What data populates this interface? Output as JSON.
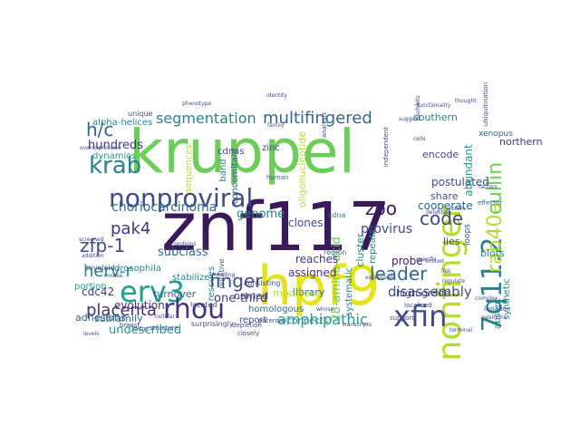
{
  "cloud": {
    "palette": {
      "dark_purple": "#3b1a5c",
      "purple": "#45337d",
      "indigo": "#3e4a89",
      "blue": "#31678e",
      "teal": "#26838e",
      "green": "#1f9e89",
      "lime": "#6cce59",
      "light_green": "#b4de2c",
      "yellow": "#e4e419",
      "bright_green": "#86d549"
    },
    "words": [
      {
        "id": "znf117",
        "text": "znf117",
        "color": "dark_purple",
        "rotate": false
      },
      {
        "id": "kruppel",
        "text": "kruppel",
        "color": "lime",
        "rotate": false
      },
      {
        "id": "hpf9",
        "text": "hpf9",
        "color": "yellow",
        "rotate": false
      },
      {
        "id": "nonproviral",
        "text": "nonproviral",
        "color": "indigo",
        "rotate": false
      },
      {
        "id": "nonfinger",
        "text": "nonfinger",
        "color": "light_green",
        "rotate": true
      },
      {
        "id": "7q11-2",
        "text": "7q11.2",
        "color": "teal",
        "rotate": true
      },
      {
        "id": "erv3",
        "text": "erv3",
        "color": "green",
        "rotate": false
      },
      {
        "id": "rhou",
        "text": "rhou",
        "color": "purple",
        "rotate": false
      },
      {
        "id": "xfin",
        "text": "xfin",
        "color": "indigo",
        "rotate": false
      },
      {
        "id": "krab",
        "text": "krab",
        "color": "teal",
        "rotate": false
      },
      {
        "id": "segmentation",
        "text": "segmentation",
        "color": "teal",
        "rotate": false
      },
      {
        "id": "multifingered",
        "text": "multifingered",
        "color": "blue",
        "rotate": false
      },
      {
        "id": "rab40a",
        "text": "rab40a",
        "color": "light_green",
        "rotate": true
      },
      {
        "id": "cullin",
        "text": "cullin",
        "color": "lime",
        "rotate": true
      },
      {
        "id": "h-c",
        "text": "h/c",
        "color": "blue",
        "rotate": false
      },
      {
        "id": "zoo",
        "text": "zoo",
        "color": "dark_purple",
        "rotate": false
      },
      {
        "id": "code",
        "text": "code",
        "color": "indigo",
        "rotate": false
      },
      {
        "id": "leader",
        "text": "leader",
        "color": "blue",
        "rotate": false
      },
      {
        "id": "finger",
        "text": "finger",
        "color": "indigo",
        "rotate": false
      },
      {
        "id": "placenta",
        "text": "placenta",
        "color": "purple",
        "rotate": false
      },
      {
        "id": "zfp-1",
        "text": "zfp-1",
        "color": "indigo",
        "rotate": false
      },
      {
        "id": "pak4",
        "text": "pak4",
        "color": "purple",
        "rotate": false
      },
      {
        "id": "herv-r",
        "text": "herv-r",
        "color": "teal",
        "rotate": false
      },
      {
        "id": "amphipathic",
        "text": "amphipathic",
        "color": "green",
        "rotate": false
      },
      {
        "id": "choriocarcinoma",
        "text": "choriocarcinoma",
        "color": "blue",
        "rotate": false
      },
      {
        "id": "disassembly",
        "text": "disassembly",
        "color": "indigo",
        "rotate": false
      },
      {
        "id": "provirus",
        "text": "provirus",
        "color": "indigo",
        "rotate": false
      },
      {
        "id": "hundreds",
        "text": "hundreds",
        "color": "purple",
        "rotate": false
      },
      {
        "id": "subclass",
        "text": "subclass",
        "color": "blue",
        "rotate": false
      },
      {
        "id": "one-third",
        "text": "one-third",
        "color": "purple",
        "rotate": false
      },
      {
        "id": "undescribed",
        "text": "undescribed",
        "color": "green",
        "rotate": false
      },
      {
        "id": "cdc42",
        "text": "cdc42",
        "color": "purple",
        "rotate": false
      },
      {
        "id": "evolution",
        "text": "evolution",
        "color": "purple",
        "rotate": false
      },
      {
        "id": "28-amino-acid",
        "text": "28-amino-acid",
        "color": "lime",
        "rotate": true
      },
      {
        "id": "cooperate",
        "text": "cooperate",
        "color": "blue",
        "rotate": false
      },
      {
        "id": "postulated",
        "text": "postulated",
        "color": "indigo",
        "rotate": false
      },
      {
        "id": "abundant",
        "text": "abundant",
        "color": "green",
        "rotate": true
      },
      {
        "id": "encode",
        "text": "encode",
        "color": "indigo",
        "rotate": false
      },
      {
        "id": "share",
        "text": "share",
        "color": "indigo",
        "rotate": false
      },
      {
        "id": "southern",
        "text": "southern",
        "color": "teal",
        "rotate": false
      },
      {
        "id": "northern",
        "text": "northern",
        "color": "purple",
        "rotate": false
      },
      {
        "id": "xenopus",
        "text": "xenopus",
        "color": "blue",
        "rotate": false
      },
      {
        "id": "probe",
        "text": "probe",
        "color": "dark_purple",
        "rotate": false
      },
      {
        "id": "high-grade",
        "text": "high-grade",
        "color": "indigo",
        "rotate": false
      },
      {
        "id": "lies",
        "text": "lies",
        "color": "indigo",
        "rotate": false
      },
      {
        "id": "blots",
        "text": "blots",
        "color": "teal",
        "rotate": false
      },
      {
        "id": "genome",
        "text": "genome",
        "color": "teal",
        "rotate": false
      },
      {
        "id": "clones",
        "text": "clones",
        "color": "indigo",
        "rotate": false
      },
      {
        "id": "reaches",
        "text": "reaches",
        "color": "purple",
        "rotate": false
      },
      {
        "id": "assigned",
        "text": "assigned",
        "color": "purple",
        "rotate": false
      },
      {
        "id": "library",
        "text": "library",
        "color": "blue",
        "rotate": false
      },
      {
        "id": "named",
        "text": "named",
        "color": "indigo",
        "rotate": false
      },
      {
        "id": "modifies",
        "text": "modifies",
        "color": "light_green",
        "rotate": false
      },
      {
        "id": "homologous",
        "text": "homologous",
        "color": "blue",
        "rotate": false
      },
      {
        "id": "report",
        "text": "report",
        "color": "indigo",
        "rotate": false
      },
      {
        "id": "connects",
        "text": "connects",
        "color": "teal",
        "rotate": false
      },
      {
        "id": "turnover",
        "text": "turnover",
        "color": "blue",
        "rotate": false
      },
      {
        "id": "adhesions",
        "text": "adhesions",
        "color": "blue",
        "rotate": false
      },
      {
        "id": "subfamily",
        "text": "subfamily",
        "color": "blue",
        "rotate": false
      },
      {
        "id": "drosophila",
        "text": "drosophila",
        "color": "teal",
        "rotate": false
      },
      {
        "id": "portion",
        "text": "portion",
        "color": "green",
        "rotate": false
      },
      {
        "id": "stabilize",
        "text": "stabilize",
        "color": "teal",
        "rotate": false
      },
      {
        "id": "dynamics",
        "text": "dynamics",
        "color": "green",
        "rotate": false
      },
      {
        "id": "alpha-helices",
        "text": "alpha-helices",
        "color": "teal",
        "rotate": false
      },
      {
        "id": "cdnas",
        "text": "cdnas",
        "color": "indigo",
        "rotate": false
      },
      {
        "id": "zinc",
        "text": "zinc",
        "color": "indigo",
        "rotate": false
      },
      {
        "id": "band",
        "text": "band",
        "color": "teal",
        "rotate": true
      },
      {
        "id": "concomitant",
        "text": "concomitant",
        "color": "blue",
        "rotate": true
      },
      {
        "id": "sequences",
        "text": "sequences",
        "color": "light_green",
        "rotate": true
      },
      {
        "id": "oligonucleotide",
        "text": "oligonucleotide",
        "color": "light_green",
        "rotate": true
      },
      {
        "id": "rescues",
        "text": "rescues",
        "color": "teal",
        "rotate": true
      },
      {
        "id": "cluster",
        "text": "cluster",
        "color": "teal",
        "rotate": true
      },
      {
        "id": "systematic",
        "text": "systematic",
        "color": "teal",
        "rotate": true
      },
      {
        "id": "repeats",
        "text": "repeats",
        "color": "teal",
        "rotate": true
      },
      {
        "id": "synthetic",
        "text": "synthetic",
        "color": "teal",
        "rotate": true
      },
      {
        "id": "absent",
        "text": "absent",
        "color": "teal",
        "rotate": true
      },
      {
        "id": "loops",
        "text": "loops",
        "color": "indigo",
        "rotate": true
      },
      {
        "id": "myeloid",
        "text": "myeloid",
        "color": "indigo",
        "rotate": false
      },
      {
        "id": "unique",
        "text": "unique",
        "color": "indigo",
        "rotate": false
      },
      {
        "id": "localized",
        "text": "localized",
        "color": "indigo",
        "rotate": false
      },
      {
        "id": "consisting",
        "text": "consisting",
        "color": "indigo",
        "rotate": false
      },
      {
        "id": "located",
        "text": "located",
        "color": "indigo",
        "rotate": false
      },
      {
        "id": "putative",
        "text": "putative",
        "color": "blue",
        "rotate": true
      },
      {
        "id": "region",
        "text": "region",
        "color": "blue",
        "rotate": false
      },
      {
        "id": "human",
        "text": "human",
        "color": "blue",
        "rotate": false
      },
      {
        "id": "surprisingly",
        "text": "surprisingly",
        "color": "indigo",
        "rotate": false
      },
      {
        "id": "locus",
        "text": "locus",
        "color": "indigo",
        "rotate": false
      },
      {
        "id": "structure",
        "text": "structure",
        "color": "indigo",
        "rotate": false
      },
      {
        "id": "depletion",
        "text": "depletion",
        "color": "indigo",
        "rotate": false
      },
      {
        "id": "closely",
        "text": "closely",
        "color": "indigo",
        "rotate": false
      },
      {
        "id": "support",
        "text": "support",
        "color": "indigo",
        "rotate": false
      },
      {
        "id": "isolation",
        "text": "isolation",
        "color": "indigo",
        "rotate": false
      },
      {
        "id": "positions",
        "text": "positions",
        "color": "indigo",
        "rotate": false
      },
      {
        "id": "link",
        "text": "link",
        "color": "indigo",
        "rotate": false
      },
      {
        "id": "breast",
        "text": "breast",
        "color": "indigo",
        "rotate": false
      },
      {
        "id": "cellular",
        "text": "cellular",
        "color": "indigo",
        "rotate": false
      },
      {
        "id": "levels",
        "text": "levels",
        "color": "indigo",
        "rotate": false
      },
      {
        "id": "terminal",
        "text": "terminal",
        "color": "indigo",
        "rotate": false
      },
      {
        "id": "limited",
        "text": "limited",
        "color": "indigo",
        "rotate": false
      },
      {
        "id": "regulate",
        "text": "regulate",
        "color": "indigo",
        "rotate": false
      },
      {
        "id": "factors",
        "text": "factors",
        "color": "indigo",
        "rotate": false
      },
      {
        "id": "effector",
        "text": "effector",
        "color": "blue",
        "rotate": false
      },
      {
        "id": "cells",
        "text": "cells",
        "color": "indigo",
        "rotate": false
      },
      {
        "id": "exhibits",
        "text": "exhibits",
        "color": "indigo",
        "rotate": true
      },
      {
        "id": "ubiquitination",
        "text": "ubiquitination",
        "color": "indigo",
        "rotate": true
      },
      {
        "id": "potential",
        "text": "potential",
        "color": "indigo",
        "rotate": false
      },
      {
        "id": "analysis",
        "text": "analysis",
        "color": "indigo",
        "rotate": true
      },
      {
        "id": "cdna",
        "text": "cdna",
        "color": "teal",
        "rotate": false
      },
      {
        "id": "whose",
        "text": "whose",
        "color": "indigo",
        "rotate": false
      },
      {
        "id": "including",
        "text": "including",
        "color": "indigo",
        "rotate": false
      },
      {
        "id": "proteins",
        "text": "proteins",
        "color": "indigo",
        "rotate": false
      },
      {
        "id": "mouse",
        "text": "mouse",
        "color": "indigo",
        "rotate": false
      },
      {
        "id": "family",
        "text": "family",
        "color": "indigo",
        "rotate": false
      },
      {
        "id": "complex",
        "text": "complex",
        "color": "indigo",
        "rotate": false
      },
      {
        "id": "specific",
        "text": "specific",
        "color": "indigo",
        "rotate": false
      },
      {
        "id": "functionality",
        "text": "functionality",
        "color": "indigo",
        "rotate": false
      },
      {
        "id": "overexpression",
        "text": "overexpression",
        "color": "indigo",
        "rotate": false
      },
      {
        "id": "screened",
        "text": "screened",
        "color": "indigo",
        "rotate": false
      },
      {
        "id": "addition",
        "text": "addition",
        "color": "indigo",
        "rotate": false
      },
      {
        "id": "identity",
        "text": "identity",
        "color": "indigo",
        "rotate": false
      },
      {
        "id": "phenotype",
        "text": "phenotype",
        "color": "indigo",
        "rotate": false
      },
      {
        "id": "expressed",
        "text": "expressed",
        "color": "indigo",
        "rotate": false
      },
      {
        "id": "transcripts",
        "text": "transcripts",
        "color": "indigo",
        "rotate": false
      },
      {
        "id": "protein",
        "text": "protein",
        "color": "indigo",
        "rotate": false
      },
      {
        "id": "suggest",
        "text": "suggest",
        "color": "indigo",
        "rotate": false
      },
      {
        "id": "detected",
        "text": "detected",
        "color": "indigo",
        "rotate": false
      },
      {
        "id": "independent",
        "text": "independent",
        "color": "indigo",
        "rotate": true
      },
      {
        "id": "thought",
        "text": "thought",
        "color": "indigo",
        "rotate": false
      }
    ]
  }
}
